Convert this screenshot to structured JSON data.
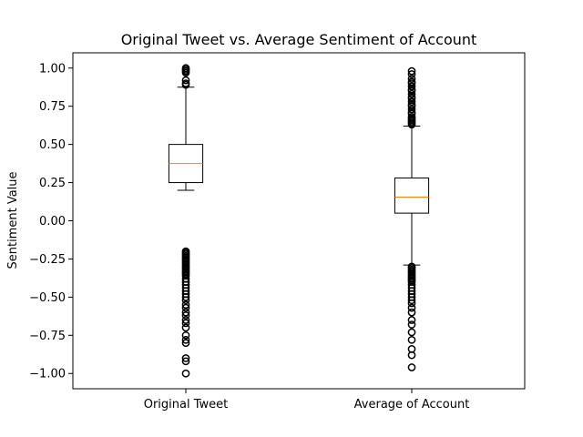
{
  "chart_data": {
    "type": "box",
    "title": "Original Tweet vs. Average Sentiment of Account",
    "xlabel": "",
    "ylabel": "Sentiment Value",
    "ylim": [
      -1.1,
      1.1
    ],
    "yticks": [
      -1.0,
      -0.75,
      -0.5,
      -0.25,
      0.0,
      0.25,
      0.5,
      0.75,
      1.0
    ],
    "ytick_labels": [
      "−1.00",
      "−0.75",
      "−0.50",
      "−0.25",
      "0.00",
      "0.25",
      "0.50",
      "0.75",
      "1.00"
    ],
    "grid": false,
    "categories": [
      "Original Tweet",
      "Average of Account"
    ],
    "series": [
      {
        "whisker_low": 0.2,
        "q1": 0.25,
        "median": 0.375,
        "q3": 0.5,
        "whisker_high": 0.875,
        "outliers": [
          1.0,
          0.99,
          0.98,
          0.97,
          0.92,
          0.9,
          0.89,
          -0.2,
          -0.21,
          -0.22,
          -0.23,
          -0.24,
          -0.25,
          -0.26,
          -0.27,
          -0.28,
          -0.29,
          -0.3,
          -0.31,
          -0.32,
          -0.33,
          -0.34,
          -0.35,
          -0.36,
          -0.38,
          -0.4,
          -0.42,
          -0.44,
          -0.46,
          -0.48,
          -0.5,
          -0.52,
          -0.55,
          -0.57,
          -0.6,
          -0.62,
          -0.65,
          -0.67,
          -0.7,
          -0.75,
          -0.78,
          -0.8,
          -0.9,
          -0.92,
          -1.0
        ]
      },
      {
        "whisker_low": -0.29,
        "q1": 0.05,
        "median": 0.155,
        "q3": 0.28,
        "whisker_high": 0.62,
        "outliers": [
          0.98,
          0.96,
          0.93,
          0.91,
          0.9,
          0.88,
          0.86,
          0.85,
          0.83,
          0.81,
          0.8,
          0.78,
          0.76,
          0.75,
          0.73,
          0.71,
          0.7,
          0.68,
          0.67,
          0.66,
          0.65,
          0.64,
          0.63,
          -0.3,
          -0.31,
          -0.32,
          -0.33,
          -0.34,
          -0.35,
          -0.36,
          -0.37,
          -0.38,
          -0.39,
          -0.4,
          -0.42,
          -0.44,
          -0.46,
          -0.48,
          -0.5,
          -0.52,
          -0.54,
          -0.57,
          -0.6,
          -0.65,
          -0.68,
          -0.73,
          -0.78,
          -0.84,
          -0.88,
          -0.96
        ]
      }
    ],
    "colors": {
      "box": "#000000",
      "median": "#ff7f0e",
      "outlier": "#000000"
    }
  }
}
